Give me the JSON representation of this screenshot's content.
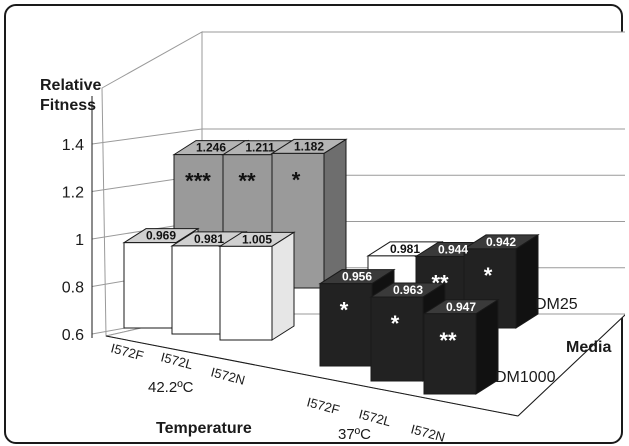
{
  "chart_data": {
    "type": "bar",
    "subtype": "3d-grouped",
    "y_title": "Relative\nFitness",
    "x_title": "Temperature",
    "depth_title": "Media",
    "ylim": [
      0.6,
      1.4
    ],
    "y_ticks": [
      "0.6",
      "0.8",
      "1",
      "1.2",
      "1.4"
    ],
    "temperatures": [
      "42.2ºC",
      "37ºC"
    ],
    "media": [
      "DM25",
      "DM1000"
    ],
    "strains": [
      "I572F",
      "I572L",
      "I572N"
    ],
    "series": [
      {
        "temperature": "42.2ºC",
        "medium": "DM25",
        "values": [
          1.246,
          1.211,
          1.182
        ],
        "labels": [
          "1.246",
          "1.211",
          "1.182"
        ],
        "significance": [
          "***",
          "**",
          "*"
        ]
      },
      {
        "temperature": "42.2ºC",
        "medium": "DM1000",
        "values": [
          0.969,
          0.981,
          1.005
        ],
        "labels": [
          "0.969",
          "0.981",
          "1.005"
        ],
        "significance": [
          "",
          "",
          ""
        ]
      },
      {
        "temperature": "37ºC",
        "medium": "DM25",
        "values": [
          0.981,
          0.944,
          0.942
        ],
        "labels": [
          "0.981",
          "0.944",
          "0.942"
        ],
        "significance": [
          "",
          "**",
          "*"
        ]
      },
      {
        "temperature": "37ºC",
        "medium": "DM1000",
        "values": [
          0.956,
          0.963,
          0.947
        ],
        "labels": [
          "0.956",
          "0.963",
          "0.947"
        ],
        "significance": [
          "*",
          "*",
          "**"
        ]
      }
    ],
    "grid": true,
    "colors": {
      "hot_back_front": "#9a9a9a",
      "hot_back_top": "#b4b4b4",
      "hot_back_side": "#6e6e6e",
      "hot_front_front": "#ffffff",
      "hot_front_top": "#d0d0d0",
      "hot_front_side": "#e6e6e6",
      "cool_back_top": "#ffffff",
      "dark_front": "#222222",
      "dark_top": "#3a3a3a",
      "dark_side": "#111111",
      "grid": "#9a9a9a"
    }
  }
}
